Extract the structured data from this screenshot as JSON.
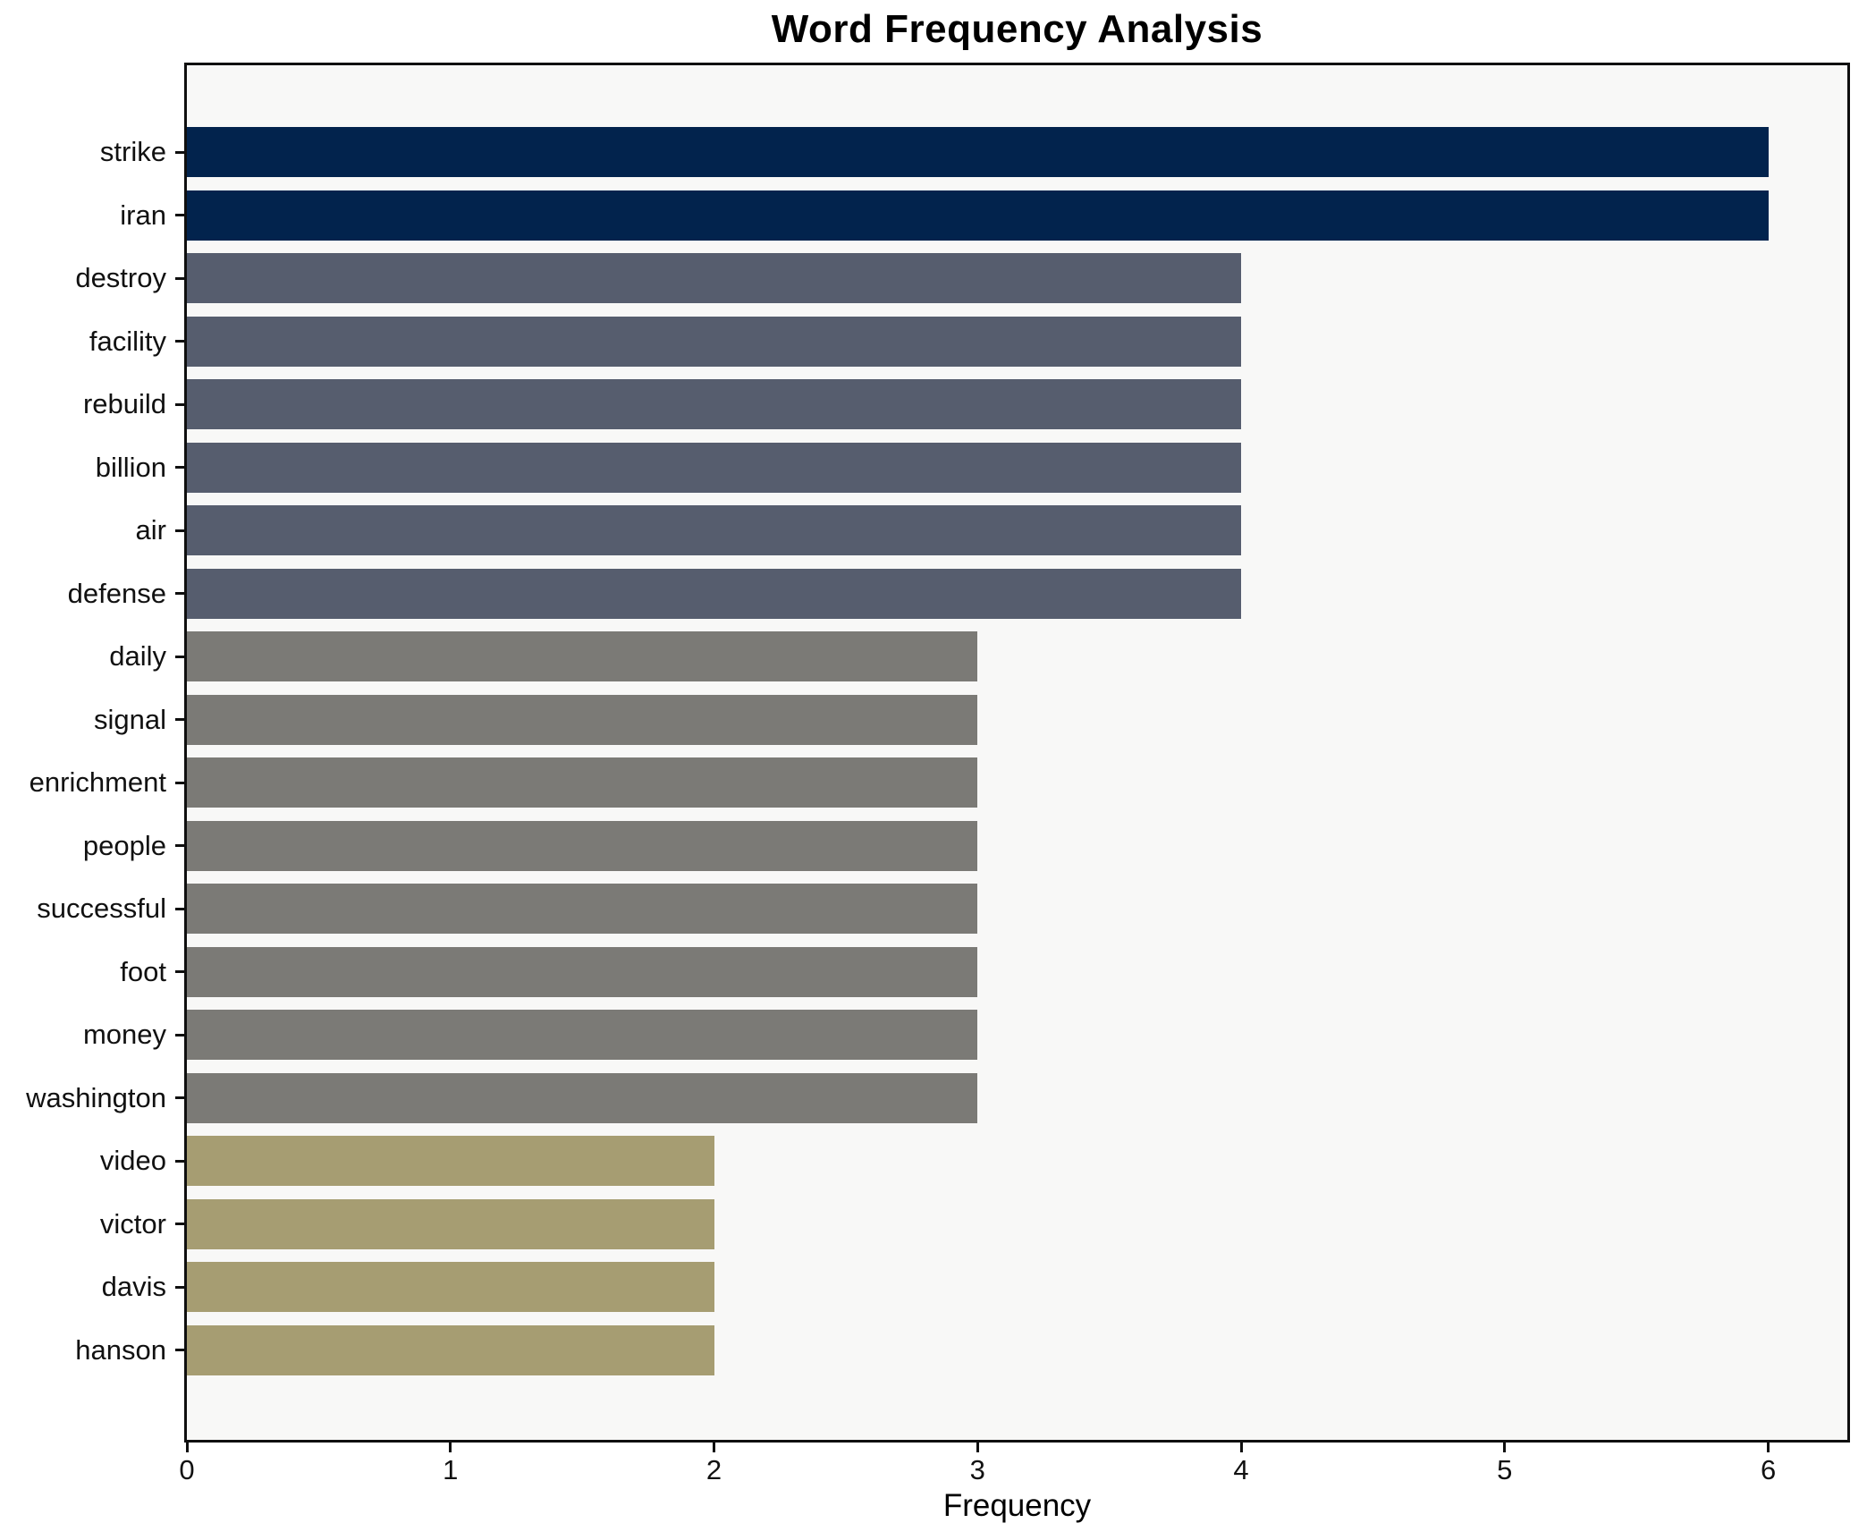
{
  "chart_data": {
    "type": "bar",
    "orientation": "horizontal",
    "title": "Word Frequency Analysis",
    "xlabel": "Frequency",
    "ylabel": "",
    "categories": [
      "strike",
      "iran",
      "destroy",
      "facility",
      "rebuild",
      "billion",
      "air",
      "defense",
      "daily",
      "signal",
      "enrichment",
      "people",
      "successful",
      "foot",
      "money",
      "washington",
      "video",
      "victor",
      "davis",
      "hanson"
    ],
    "values": [
      6,
      6,
      4,
      4,
      4,
      4,
      4,
      4,
      3,
      3,
      3,
      3,
      3,
      3,
      3,
      3,
      2,
      2,
      2,
      2
    ],
    "bar_colors": [
      "#02234d",
      "#02234d",
      "#565d6e",
      "#565d6e",
      "#565d6e",
      "#565d6e",
      "#565d6e",
      "#565d6e",
      "#7b7a76",
      "#7b7a76",
      "#7b7a76",
      "#7b7a76",
      "#7b7a76",
      "#7b7a76",
      "#7b7a76",
      "#7b7a76",
      "#a69d72",
      "#a69d72",
      "#a69d72",
      "#a69d72"
    ],
    "color_legend": {
      "frequency_6": "#02234d",
      "frequency_4": "#565d6e",
      "frequency_3": "#7b7a76",
      "frequency_2": "#a69d72"
    },
    "xticks": [
      0,
      1,
      2,
      3,
      4,
      5,
      6
    ],
    "xlim": [
      0,
      6.3
    ],
    "grid": false,
    "legend": "none",
    "plot_background": "#f8f8f7",
    "spine_color": "#0f0f0f"
  }
}
